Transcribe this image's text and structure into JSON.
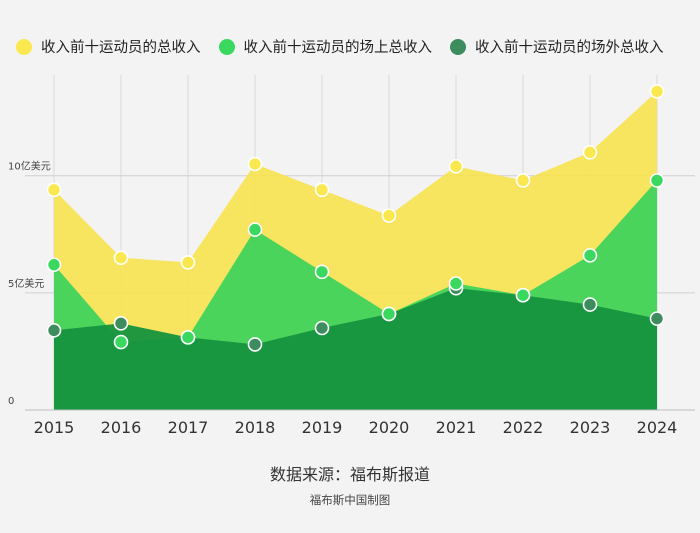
{
  "chart_data": {
    "type": "area",
    "categories": [
      "2015",
      "2016",
      "2017",
      "2018",
      "2019",
      "2020",
      "2021",
      "2022",
      "2023",
      "2024"
    ],
    "ytick_labels": [
      {
        "value": 0,
        "label": "0"
      },
      {
        "value": 5,
        "label": "5亿美元"
      },
      {
        "value": 10,
        "label": "10亿美元"
      }
    ],
    "ylim": [
      0,
      14.3
    ],
    "grid": true,
    "legend_position": "top",
    "series": [
      {
        "name": "收入前十运动员的总收入",
        "color": "#f7e24f",
        "marker_fill": "#fbe84f",
        "values": [
          9.4,
          6.5,
          6.3,
          10.5,
          9.4,
          8.3,
          10.4,
          9.8,
          11.0,
          13.6
        ]
      },
      {
        "name": "收入前十运动员的场上总收入",
        "color": "#36d15c",
        "marker_fill": "#3ad85f",
        "values": [
          6.2,
          2.9,
          3.1,
          7.7,
          5.9,
          4.1,
          5.4,
          4.9,
          6.6,
          9.8
        ]
      },
      {
        "name": "收入前十运动员的场外总收入",
        "color": "#15933e",
        "marker_fill": "#3c8c5e",
        "values": [
          3.4,
          3.7,
          3.1,
          2.8,
          3.5,
          4.1,
          5.2,
          4.9,
          4.5,
          3.9
        ]
      }
    ],
    "xlabel": "",
    "ylabel": ""
  },
  "footer": {
    "source": "数据来源：福布斯报道",
    "credit": "福布斯中国制图"
  }
}
